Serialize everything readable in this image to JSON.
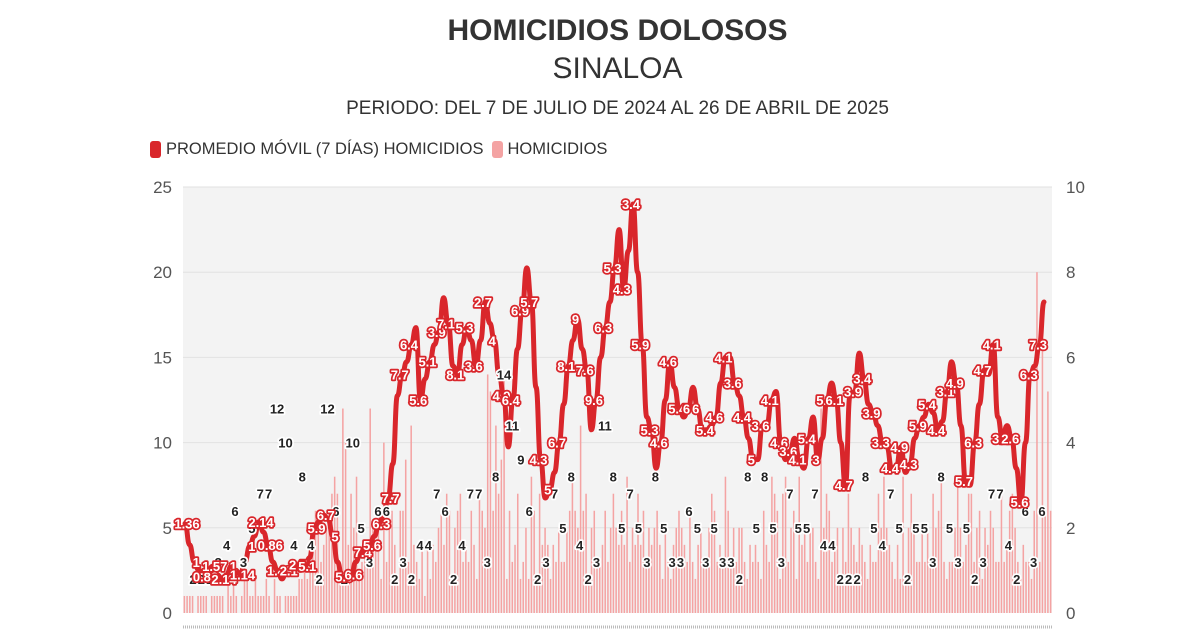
{
  "header": {
    "title": "HOMICIDIOS DOLOSOS",
    "subtitle": "SINALOA",
    "period": "PERIODO: DEL 7 DE JULIO DE 2024 AL 26 DE ABRIL DE 2025"
  },
  "colors": {
    "line": "#d9262b",
    "bars": "#f4a3a3",
    "plot_bg": "#f3f3f3"
  },
  "chart_data": {
    "type": "bar",
    "combo": "bar+line",
    "x_range": [
      "2024-07-07",
      "2025-04-26"
    ],
    "left_axis": {
      "min": 0,
      "max": 25,
      "ticks": [
        "0",
        "5",
        "10",
        "15",
        "20",
        "25"
      ]
    },
    "right_axis": {
      "min": 0,
      "max": 10,
      "ticks": [
        "0",
        "2",
        "4",
        "6",
        "8",
        "10"
      ]
    },
    "grid": true,
    "legend": {
      "position": "top-left",
      "items": [
        {
          "name": "PROMEDIO MÓVIL (7 DÍAS) HOMICIDIOS",
          "color": "#d9262b",
          "axis": "right"
        },
        {
          "name": "HOMICIDIOS",
          "color": "#f4a3a3",
          "axis": "left"
        }
      ]
    },
    "series": [
      {
        "name": "PROMEDIO MÓVIL (7 DÍAS) HOMICIDIOS",
        "axis": "right",
        "values": [
          2.1,
          1.6,
          1.2,
          1.0,
          0.86,
          1.0,
          1.1,
          0.9,
          0.8,
          0.9,
          1.1,
          1.0,
          0.9,
          1.2,
          1.57,
          1.8,
          2.14,
          1.9,
          1.6,
          1.2,
          1.0,
          0.8,
          1.0,
          1.1,
          1.14,
          1.0,
          1.1,
          1.3,
          2.0,
          2.14,
          2.3,
          2.2,
          1.8,
          1.2,
          0.86,
          0.7,
          0.9,
          1.2,
          1.43,
          1.5,
          1.6,
          1.8,
          2.1,
          2.3,
          2.7,
          3.5,
          5.1,
          5.6,
          5.9,
          6.3,
          6.7,
          5.0,
          5.5,
          5.9,
          6.3,
          6.6,
          7.4,
          6.8,
          5.8,
          5.6,
          6.3,
          6.7,
          6.4,
          5.8,
          6.4,
          7.3,
          6.8,
          6.4,
          5.6,
          5.1,
          3.9,
          5.0,
          6.2,
          7.1,
          8.1,
          7.3,
          5.3,
          3.6,
          2.7,
          2.9,
          3.3,
          4.0,
          4.9,
          5.8,
          6.4,
          6.9,
          6.2,
          5.7,
          4.3,
          5.0,
          6.0,
          6.7,
          7.3,
          8.1,
          9.0,
          7.6,
          8.5,
          9.6,
          8.0,
          6.3,
          4.6,
          4.3,
          3.4,
          4.0,
          5.0,
          5.9,
          5.3,
          4.8,
          4.6,
          4.8,
          5.3,
          4.8,
          4.3,
          4.3,
          4.4,
          4.6,
          5.4,
          6.0,
          6.0,
          5.4,
          5.1,
          4.6,
          4.1,
          3.6,
          3.6,
          4.4,
          4.4,
          5.0,
          5.2,
          4.0,
          3.6,
          3.8,
          4.1,
          3.6,
          3.4,
          4.1,
          4.6,
          3.6,
          4.1,
          5.0,
          5.4,
          5.0,
          4.0,
          3.0,
          5.1,
          5.2,
          6.1,
          5.5,
          4.9,
          4.7,
          4.4,
          4.0,
          3.9,
          3.4,
          3.4,
          3.9,
          3.3,
          3.5,
          4.1,
          4.4,
          4.6,
          4.9,
          4.7,
          4.3,
          4.5,
          5.2,
          5.9,
          5.4,
          4.4,
          3.1,
          3.0,
          4.0,
          4.9,
          5.7,
          5.6,
          6.3,
          4.6,
          4.1,
          4.4,
          4.1,
          3.4,
          2.6,
          4.0,
          5.6,
          5.8,
          6.3,
          7.3
        ]
      },
      {
        "name": "HOMICIDIOS",
        "axis": "left",
        "values": [
          1,
          1,
          1,
          1,
          0,
          1,
          1,
          1,
          1,
          0,
          1,
          1,
          1,
          1,
          1,
          0,
          2,
          1,
          2,
          1,
          0,
          1,
          2,
          2,
          1,
          1,
          2,
          1,
          1,
          1,
          2,
          1,
          0,
          2,
          1,
          1,
          0,
          1,
          1,
          1,
          1,
          1,
          2,
          2,
          3,
          2,
          3,
          4,
          6,
          5,
          3,
          4,
          5,
          6,
          7,
          8,
          7,
          3,
          12,
          10,
          4,
          7,
          5,
          8,
          2,
          3,
          4,
          4,
          12,
          5,
          4,
          6,
          2,
          10,
          3,
          5,
          6,
          4,
          2,
          6,
          6,
          9,
          3,
          11,
          4,
          3,
          2,
          4,
          1,
          4,
          2,
          4,
          3,
          5,
          6,
          4,
          7,
          6,
          2,
          5,
          6,
          7,
          3,
          4,
          3,
          6,
          4,
          2,
          7,
          6,
          5,
          14,
          13,
          6,
          11,
          7,
          9,
          14,
          2,
          6,
          3,
          4,
          7,
          2,
          3,
          5,
          2,
          8,
          6,
          2,
          7,
          4,
          5,
          4,
          2,
          4,
          3,
          5,
          3,
          3,
          5,
          6,
          8,
          6,
          5,
          11,
          6,
          7,
          2,
          5,
          6,
          3,
          3,
          4,
          6,
          3,
          5,
          7,
          5,
          4,
          6,
          4,
          8,
          3,
          5,
          4,
          7,
          4,
          6,
          3,
          5,
          4,
          5,
          6,
          4,
          2,
          5,
          3,
          2,
          4,
          5,
          6,
          5,
          4,
          3,
          6,
          3,
          2,
          4,
          5,
          3,
          3,
          5,
          7,
          6,
          3,
          4,
          3,
          8,
          6,
          3,
          5,
          3,
          5,
          5,
          3,
          2,
          4,
          3,
          4,
          3,
          2,
          6,
          4,
          3,
          8,
          7,
          6,
          2,
          7,
          8,
          3,
          5,
          6,
          2,
          8,
          4,
          5,
          3,
          5,
          5,
          3,
          2,
          12,
          5,
          7,
          6,
          3,
          4,
          5,
          2,
          5,
          3,
          7,
          5,
          4,
          3,
          5,
          4,
          3,
          2,
          4,
          3,
          3,
          7,
          5,
          8,
          5,
          4,
          3,
          2,
          4,
          2,
          8,
          2,
          5,
          7,
          5,
          3,
          3,
          5,
          3,
          5,
          3,
          7,
          5,
          6,
          8,
          3,
          2,
          3,
          3,
          5,
          8,
          5,
          3,
          4,
          7,
          7,
          3,
          5,
          6,
          2,
          5,
          4,
          6,
          5,
          3,
          3,
          7,
          3,
          4,
          6,
          7,
          5,
          3,
          2,
          4,
          3,
          3,
          2,
          6,
          20,
          3,
          16,
          6,
          13,
          6
        ]
      }
    ],
    "line_labels": [
      "1.36",
      "1",
      "0.86",
      "1.57",
      "2.14",
      "1",
      "1.14",
      "1",
      "2.14",
      "0.86",
      "1.43",
      "2.1",
      "2.7",
      "5.1",
      "5.9",
      "6.7",
      "5",
      "5.9",
      "6.6",
      "7.4",
      "5.6",
      "6.3",
      "7.7",
      "7.7",
      "6.4",
      "5.6",
      "5.1",
      "3.9",
      "7.1",
      "8.1",
      "5.3",
      "3.6",
      "2.7",
      "4",
      "4.9",
      "6.4",
      "6.9",
      "5.7",
      "4.3",
      "5",
      "6.7",
      "8.1",
      "9",
      "7.6",
      "9.6",
      "6.3",
      "5.3",
      "4.3",
      "3.4",
      "5.9",
      "5.3",
      "4.6",
      "4.6",
      "5.4",
      "6",
      "6",
      "5.4",
      "4.6",
      "4.1",
      "3.6",
      "4.4",
      "5",
      "3.6",
      "4.1",
      "4.6",
      "3.6",
      "4.1",
      "5.4",
      "3",
      "5.1",
      "6.1",
      "4.7",
      "3.9",
      "3.4",
      "3.9",
      "3.3",
      "4.4",
      "4.9",
      "4.3",
      "5.9",
      "5.4",
      "4.4",
      "3.1",
      "4.9",
      "5.7",
      "6.3",
      "4.7",
      "4.1",
      "3.4",
      "2.6",
      "5.6",
      "6.3",
      "7.3"
    ],
    "bar_labels": [
      "2",
      "2",
      "2",
      "3",
      "4",
      "6",
      "3",
      "5",
      "7",
      "7",
      "12",
      "10",
      "4",
      "8",
      "4",
      "2",
      "12",
      "6",
      "2",
      "10",
      "5",
      "3",
      "6",
      "6",
      "2",
      "3",
      "2",
      "4",
      "4",
      "7",
      "6",
      "2",
      "4",
      "7",
      "7",
      "3",
      "8",
      "14",
      "11",
      "9",
      "6",
      "2",
      "3",
      "7",
      "5",
      "8",
      "4",
      "2",
      "3",
      "11",
      "8",
      "5",
      "7",
      "5",
      "3",
      "8",
      "5",
      "3",
      "3",
      "6",
      "5",
      "3",
      "5",
      "3",
      "3",
      "2",
      "8",
      "5",
      "8",
      "5",
      "3",
      "7",
      "5",
      "5",
      "7",
      "4",
      "4",
      "2",
      "2",
      "2",
      "8",
      "5",
      "4",
      "7",
      "5",
      "2",
      "5",
      "5",
      "3",
      "8",
      "5",
      "3",
      "5",
      "2",
      "3",
      "7",
      "7",
      "4",
      "2",
      "6",
      "3",
      "6"
    ]
  }
}
